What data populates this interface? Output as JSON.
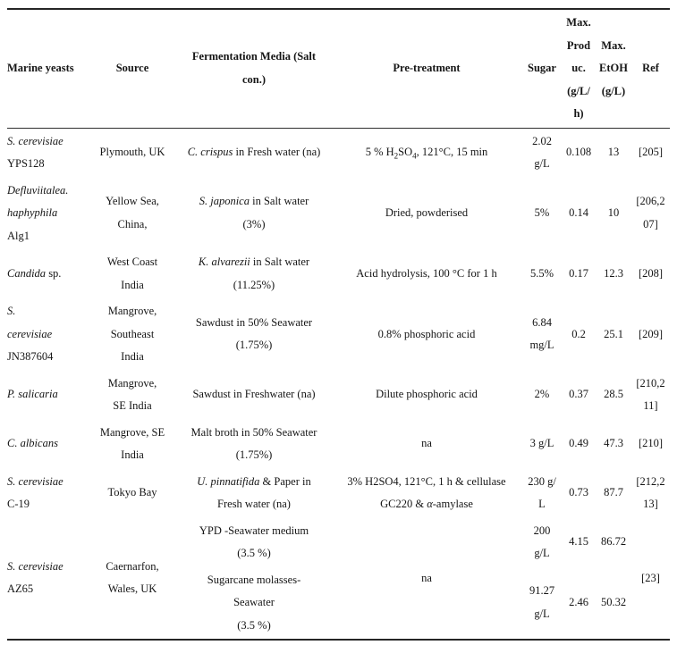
{
  "colors": {
    "background": "#ffffff",
    "text": "#151515",
    "rule": "#262626"
  },
  "table": {
    "columns": [
      {
        "id": "yeast",
        "label": "Marine yeasts"
      },
      {
        "id": "source",
        "label": "Source"
      },
      {
        "id": "media",
        "label": "Fermentation Media (Salt con.)",
        "label_lines": [
          "Fermentation Media (Salt",
          "con.)"
        ]
      },
      {
        "id": "pre",
        "label": "Pre-treatment"
      },
      {
        "id": "sugar",
        "label": "Sugar"
      },
      {
        "id": "produc",
        "label": "Max. Produc. (g/L/h)",
        "label_lines": [
          "Max.",
          "Prod",
          "uc.",
          "(g/L/",
          "h)"
        ]
      },
      {
        "id": "etoh",
        "label": "Max. EtOH (g/L)",
        "label_lines": [
          "Max.",
          "EtOH",
          "(g/L)"
        ]
      },
      {
        "id": "ref",
        "label": "Ref"
      }
    ],
    "rows": [
      {
        "cells": [
          {
            "col": "yeast",
            "lines": [
              [
                {
                  "t": "S. cerevisiae",
                  "i": true
                }
              ],
              [
                "YPS128"
              ]
            ]
          },
          {
            "col": "source",
            "lines": [
              [
                "Plymouth, UK"
              ]
            ]
          },
          {
            "col": "media",
            "lines": [
              [
                {
                  "t": "C. crispus",
                  "i": true
                },
                {
                  "t": " in Fresh water (na)"
                }
              ]
            ]
          },
          {
            "col": "pre",
            "lines": [
              [
                {
                  "t": "5 % H"
                },
                {
                  "t": "2",
                  "sub": true
                },
                {
                  "t": "SO"
                },
                {
                  "t": "4",
                  "sub": true
                },
                {
                  "t": ", 121°C, 15 min"
                }
              ]
            ]
          },
          {
            "col": "sugar",
            "lines": [
              [
                "2.02"
              ],
              [
                "g/L"
              ]
            ]
          },
          {
            "col": "produc",
            "lines": [
              [
                "0.108"
              ]
            ]
          },
          {
            "col": "etoh",
            "lines": [
              [
                "13"
              ]
            ]
          },
          {
            "col": "ref",
            "lines": [
              [
                "[205]"
              ]
            ]
          }
        ]
      },
      {
        "cells": [
          {
            "col": "yeast",
            "lines": [
              [
                {
                  "t": "Defluviitalea.",
                  "i": true
                }
              ],
              [
                {
                  "t": "haphyphila",
                  "i": true
                }
              ],
              [
                "Alg1"
              ]
            ]
          },
          {
            "col": "source",
            "lines": [
              [
                "Yellow Sea,"
              ],
              [
                "China,"
              ]
            ]
          },
          {
            "col": "media",
            "lines": [
              [
                {
                  "t": "S. japonica",
                  "i": true
                },
                {
                  "t": " in Salt water"
                }
              ],
              [
                "(3%)"
              ]
            ]
          },
          {
            "col": "pre",
            "lines": [
              [
                "Dried, powderised"
              ]
            ]
          },
          {
            "col": "sugar",
            "lines": [
              [
                "5%"
              ]
            ]
          },
          {
            "col": "produc",
            "lines": [
              [
                "0.14"
              ]
            ]
          },
          {
            "col": "etoh",
            "lines": [
              [
                "10"
              ]
            ]
          },
          {
            "col": "ref",
            "lines": [
              [
                "[206,2"
              ],
              [
                "07]"
              ]
            ]
          }
        ]
      },
      {
        "cells": [
          {
            "col": "yeast",
            "lines": [
              [
                {
                  "t": "Candida",
                  "i": true
                },
                {
                  "t": " sp."
                }
              ]
            ]
          },
          {
            "col": "source",
            "lines": [
              [
                "West Coast"
              ],
              [
                "India"
              ]
            ]
          },
          {
            "col": "media",
            "lines": [
              [
                {
                  "t": "K. alvarezii",
                  "i": true
                },
                {
                  "t": " in Salt water"
                }
              ],
              [
                "(11.25%)"
              ]
            ]
          },
          {
            "col": "pre",
            "lines": [
              [
                "Acid hydrolysis, 100 °C for 1 h"
              ]
            ]
          },
          {
            "col": "sugar",
            "lines": [
              [
                "5.5%"
              ]
            ]
          },
          {
            "col": "produc",
            "lines": [
              [
                "0.17"
              ]
            ]
          },
          {
            "col": "etoh",
            "lines": [
              [
                "12.3"
              ]
            ]
          },
          {
            "col": "ref",
            "lines": [
              [
                "[208]"
              ]
            ]
          }
        ]
      },
      {
        "cells": [
          {
            "col": "yeast",
            "lines": [
              [
                {
                  "t": "S.",
                  "i": true
                }
              ],
              [
                {
                  "t": "cerevisiae",
                  "i": true
                }
              ],
              [
                "JN387604"
              ]
            ]
          },
          {
            "col": "source",
            "lines": [
              [
                "Mangrove,"
              ],
              [
                "Southeast"
              ],
              [
                "India"
              ]
            ]
          },
          {
            "col": "media",
            "lines": [
              [
                "Sawdust in 50% Seawater"
              ],
              [
                "(1.75%)"
              ]
            ]
          },
          {
            "col": "pre",
            "lines": [
              [
                "0.8% phosphoric acid"
              ]
            ]
          },
          {
            "col": "sugar",
            "lines": [
              [
                "6.84"
              ],
              [
                "mg/L"
              ]
            ]
          },
          {
            "col": "produc",
            "lines": [
              [
                "0.2"
              ]
            ]
          },
          {
            "col": "etoh",
            "lines": [
              [
                "25.1"
              ]
            ]
          },
          {
            "col": "ref",
            "lines": [
              [
                "[209]"
              ]
            ]
          }
        ]
      },
      {
        "cells": [
          {
            "col": "yeast",
            "lines": [
              [
                {
                  "t": "P. salicaria",
                  "i": true
                }
              ]
            ]
          },
          {
            "col": "source",
            "lines": [
              [
                "Mangrove,"
              ],
              [
                "SE India"
              ]
            ]
          },
          {
            "col": "media",
            "lines": [
              [
                "Sawdust in Freshwater (na)"
              ]
            ]
          },
          {
            "col": "pre",
            "lines": [
              [
                "Dilute phosphoric acid"
              ]
            ]
          },
          {
            "col": "sugar",
            "lines": [
              [
                "2%"
              ]
            ]
          },
          {
            "col": "produc",
            "lines": [
              [
                "0.37"
              ]
            ]
          },
          {
            "col": "etoh",
            "lines": [
              [
                "28.5"
              ]
            ]
          },
          {
            "col": "ref",
            "lines": [
              [
                "[210,2"
              ],
              [
                "11]"
              ]
            ]
          }
        ]
      },
      {
        "cells": [
          {
            "col": "yeast",
            "lines": [
              [
                {
                  "t": "C. albicans",
                  "i": true
                }
              ]
            ]
          },
          {
            "col": "source",
            "lines": [
              [
                "Mangrove, SE"
              ],
              [
                "India"
              ]
            ]
          },
          {
            "col": "media",
            "lines": [
              [
                "Malt broth in 50% Seawater"
              ],
              [
                "(1.75%)"
              ]
            ]
          },
          {
            "col": "pre",
            "lines": [
              [
                "na"
              ]
            ]
          },
          {
            "col": "sugar",
            "lines": [
              [
                "3 g/L"
              ]
            ]
          },
          {
            "col": "produc",
            "lines": [
              [
                "0.49"
              ]
            ]
          },
          {
            "col": "etoh",
            "lines": [
              [
                "47.3"
              ]
            ]
          },
          {
            "col": "ref",
            "lines": [
              [
                "[210]"
              ]
            ]
          }
        ]
      },
      {
        "cells": [
          {
            "col": "yeast",
            "lines": [
              [
                {
                  "t": "S. cerevisiae",
                  "i": true
                }
              ],
              [
                "C-19"
              ]
            ]
          },
          {
            "col": "source",
            "lines": [
              [
                "Tokyo Bay"
              ]
            ]
          },
          {
            "col": "media",
            "lines": [
              [
                {
                  "t": "U. pinnatifida",
                  "i": true
                },
                {
                  "t": " & Paper in"
                }
              ],
              [
                "Fresh water (na)"
              ]
            ]
          },
          {
            "col": "pre",
            "lines": [
              [
                "3% H2SO4, 121°C, 1 h & cellulase"
              ],
              [
                {
                  "t": "GC220 & "
                },
                {
                  "t": "α",
                  "i": true
                },
                {
                  "t": "-amylase"
                }
              ]
            ]
          },
          {
            "col": "sugar",
            "lines": [
              [
                "230 g/"
              ],
              [
                "L"
              ]
            ]
          },
          {
            "col": "produc",
            "lines": [
              [
                "0.73"
              ]
            ]
          },
          {
            "col": "etoh",
            "lines": [
              [
                "87.7"
              ]
            ]
          },
          {
            "col": "ref",
            "lines": [
              [
                "[212,2"
              ],
              [
                "13]"
              ]
            ]
          }
        ]
      },
      {
        "cells": [
          {
            "col": "yeast",
            "rowspan": 2,
            "lines": [
              [
                {
                  "t": "S. cerevisiae",
                  "i": true
                }
              ],
              [
                "AZ65"
              ]
            ]
          },
          {
            "col": "source",
            "rowspan": 2,
            "lines": [
              [
                "Caernarfon,"
              ],
              [
                "Wales, UK"
              ]
            ]
          },
          {
            "col": "media",
            "lines": [
              [
                "YPD -Seawater medium"
              ],
              [
                "(3.5 %)"
              ]
            ]
          },
          {
            "col": "pre",
            "rowspan": 2,
            "lines": [
              [
                "na"
              ]
            ]
          },
          {
            "col": "sugar",
            "lines": [
              [
                "200"
              ],
              [
                "g/L"
              ]
            ]
          },
          {
            "col": "produc",
            "lines": [
              [
                "4.15"
              ]
            ]
          },
          {
            "col": "etoh",
            "lines": [
              [
                "86.72"
              ]
            ]
          },
          {
            "col": "ref",
            "rowspan": 2,
            "lines": [
              [
                "[23]"
              ]
            ]
          }
        ]
      },
      {
        "cells": [
          {
            "col": "media",
            "lines": [
              [
                "Sugarcane molasses-"
              ],
              [
                "Seawater"
              ],
              [
                "(3.5 %)"
              ]
            ]
          },
          {
            "col": "sugar",
            "lines": [
              [
                "91.27"
              ],
              [
                "g/L"
              ]
            ]
          },
          {
            "col": "produc",
            "lines": [
              [
                "2.46"
              ]
            ]
          },
          {
            "col": "etoh",
            "lines": [
              [
                "50.32"
              ]
            ]
          }
        ]
      }
    ]
  }
}
